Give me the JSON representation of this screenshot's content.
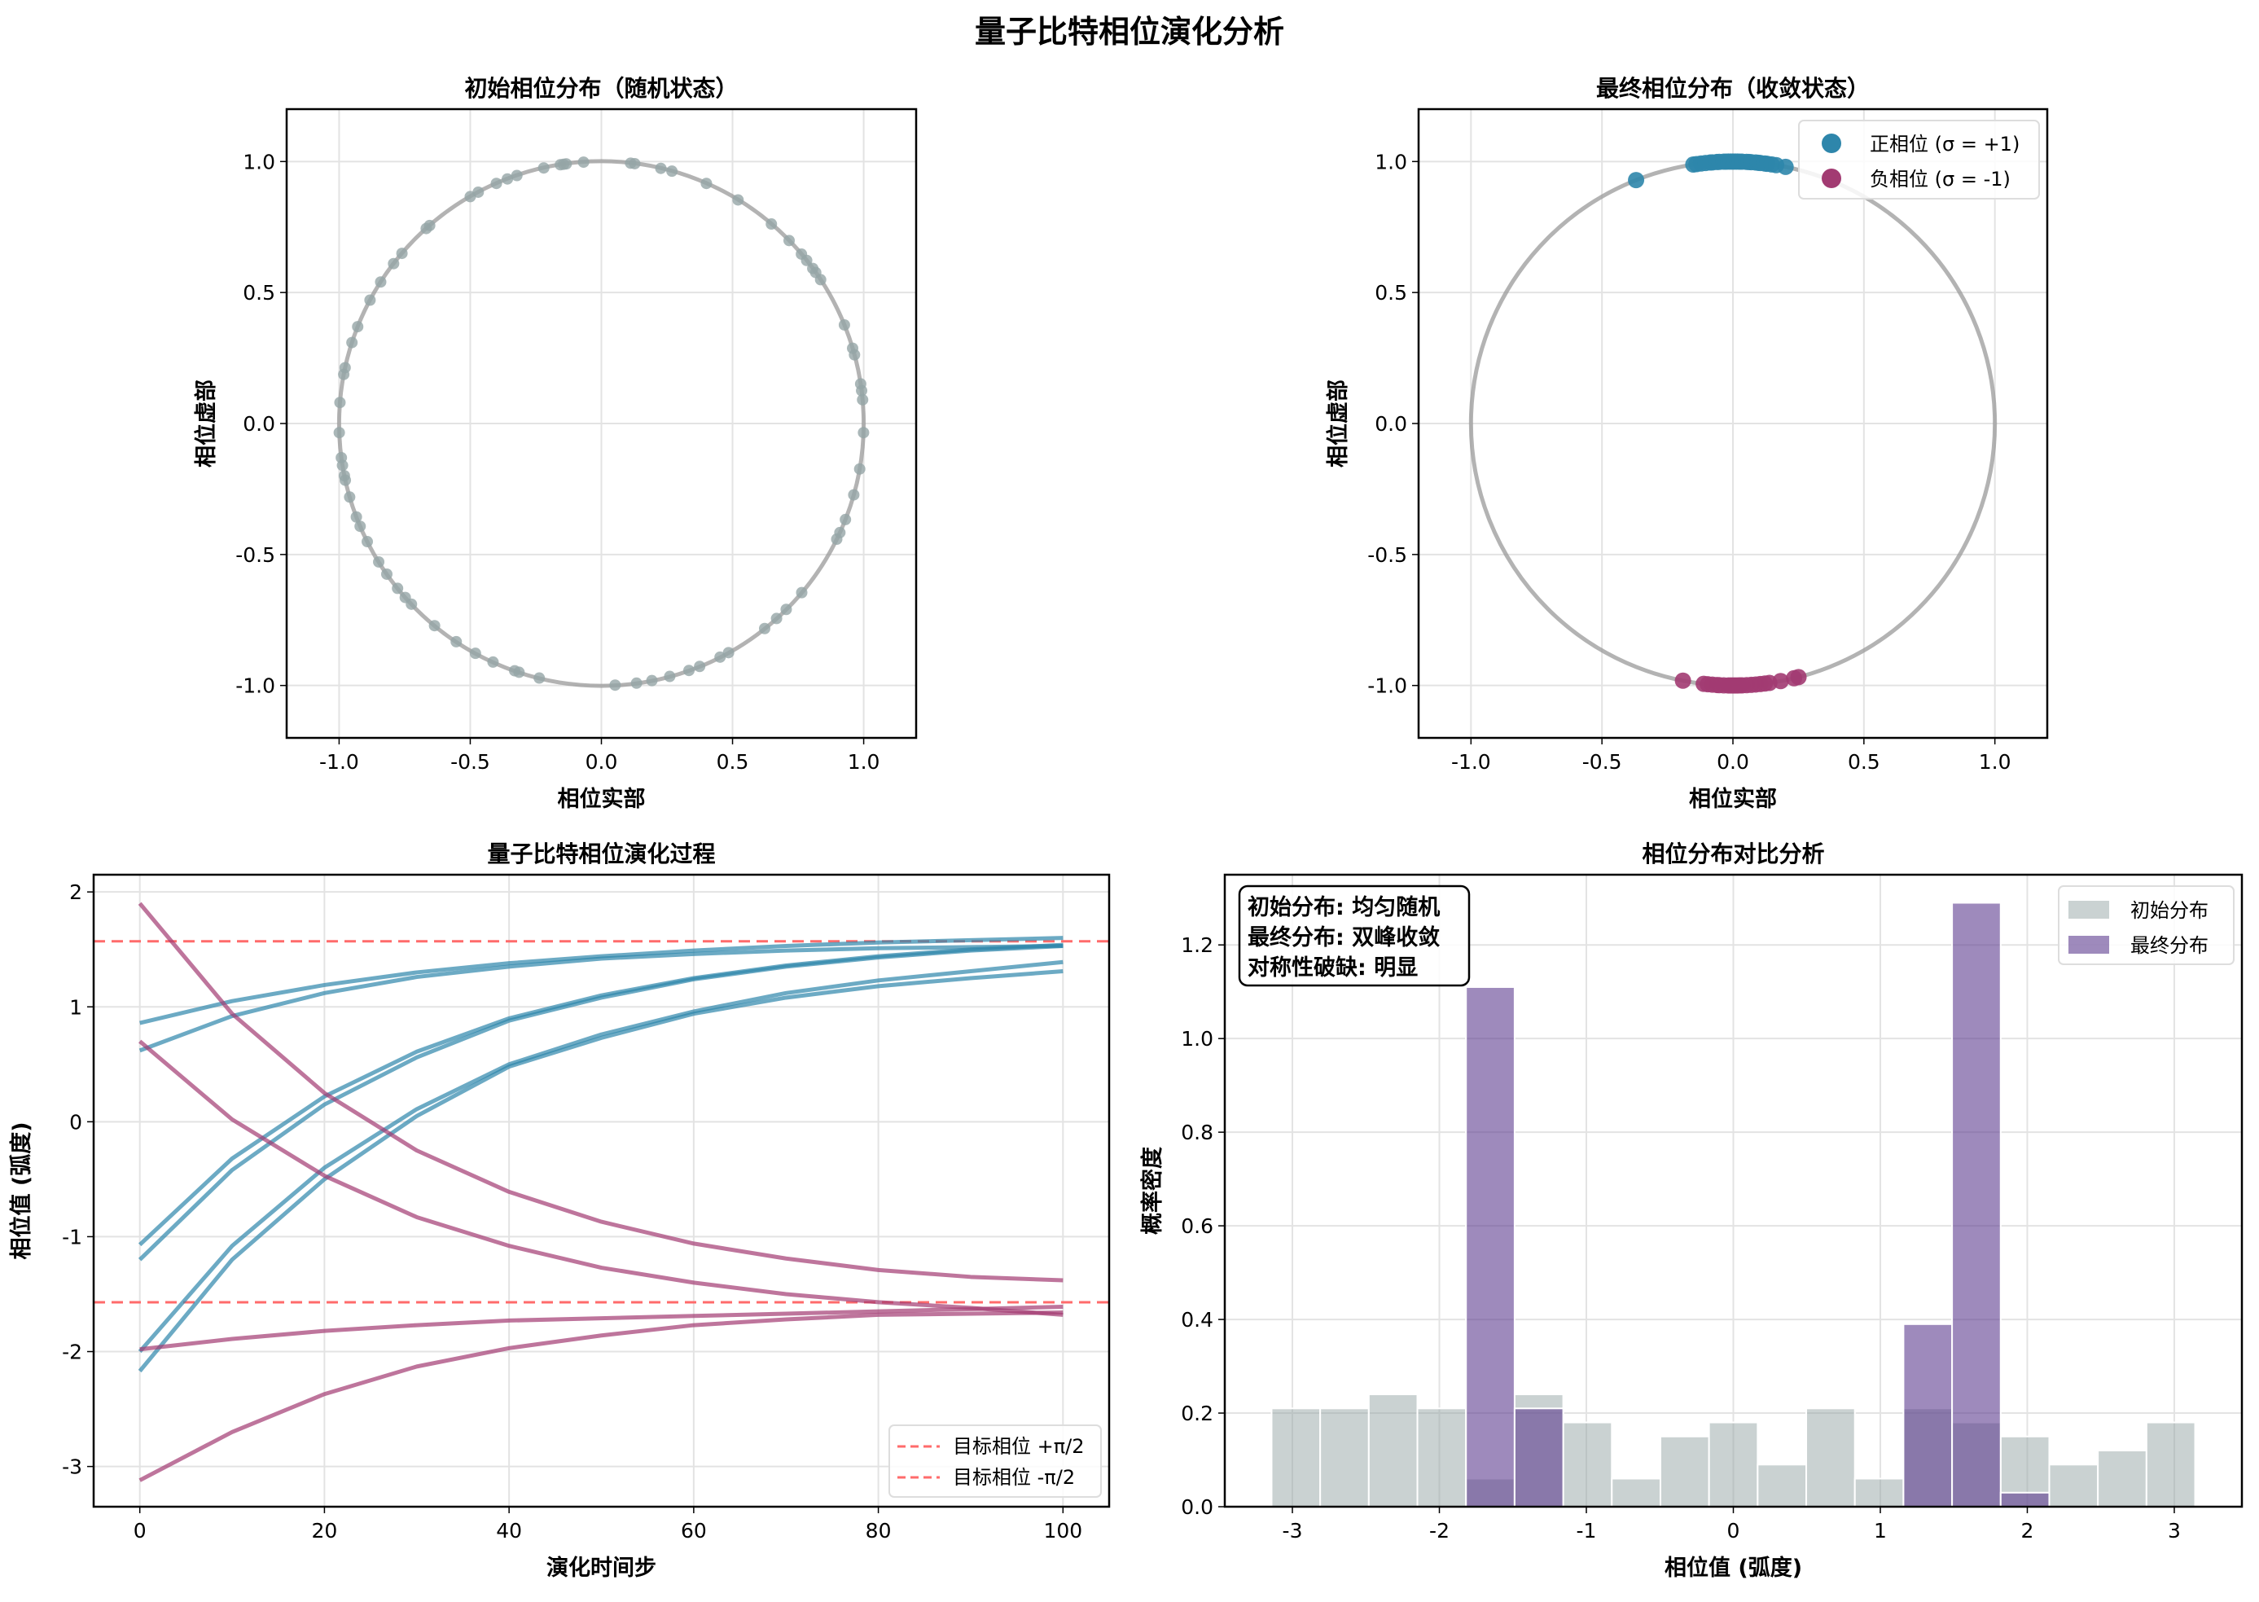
{
  "figure": {
    "title": "量子比特相位演化分析"
  },
  "chart_data": [
    {
      "type": "scatter",
      "title": "初始相位分布（随机状态）",
      "xlabel": "相位实部",
      "ylabel": "相位虚部",
      "xlim": [
        -1.2,
        1.2
      ],
      "ylim": [
        -1.2,
        1.2
      ],
      "xtick_labels": [
        "-1.0",
        "-0.5",
        "0.0",
        "0.5",
        "1.0"
      ],
      "ytick_labels": [
        "-1.0",
        "-0.5",
        "0.0",
        "0.5",
        "1.0"
      ],
      "grid": true,
      "unit_circle": true,
      "point_color": "#95A5A6",
      "angles_deg": [
        102.7,
        99,
        98.3,
        97.7,
        93.9,
        83.6,
        82.7,
        76.9,
        74.4,
        66.4,
        58.6,
        108.8,
        111,
        113.6,
        118,
        120,
        130.9,
        131.9,
        139.5,
        142.4,
        147.3,
        151.9,
        158.3,
        162,
        167.7,
        169.2,
        175.4,
        182,
        187.5,
        189.2,
        191.5,
        192.5,
        196.3,
        200.9,
        203.1,
        206.8,
        211.9,
        215.1,
        219,
        221.6,
        223.6,
        230.5,
        236.4,
        241.3,
        245.6,
        250.7,
        251.7,
        256.3,
        273,
        277.7,
        281.1,
        285.1,
        289.5,
        292,
        296.9,
        299,
        308.5,
        311.9,
        314.8,
        319.8,
        333.8,
        335.4,
        338.5,
        344.2,
        350,
        358,
        5.2,
        7.2,
        8.7,
        15.2,
        16.7,
        22.1,
        33.3,
        35.2,
        36.3,
        38.5,
        40.3,
        44.3,
        49.6
      ]
    },
    {
      "type": "scatter",
      "title": "最终相位分布（收敛状态）",
      "xlabel": "相位实部",
      "ylabel": "相位虚部",
      "xlim": [
        -1.2,
        1.2
      ],
      "ylim": [
        -1.2,
        1.2
      ],
      "xtick_labels": [
        "-1.0",
        "-0.5",
        "0.0",
        "0.5",
        "1.0"
      ],
      "ytick_labels": [
        "-1.0",
        "-0.5",
        "0.0",
        "0.5",
        "1.0"
      ],
      "grid": true,
      "unit_circle": true,
      "legend": "top-right",
      "series": [
        {
          "name": "正相位 (σ = +1)",
          "color": "#2E86AB",
          "angles_deg": [
            111.7,
            98.7,
            98,
            97,
            96,
            95,
            94.5,
            93.5,
            93,
            92,
            91.5,
            91,
            90.5,
            90,
            89.5,
            89,
            88.5,
            88,
            87,
            86.5,
            86,
            85,
            84.5,
            84,
            83,
            82.5,
            81.5,
            80.5,
            78.4
          ]
        },
        {
          "name": "负相位 (σ = -1)",
          "color": "#A23B72",
          "angles_deg": [
            259,
            263.6,
            264.5,
            265.5,
            266.5,
            267,
            268,
            269,
            269.5,
            270,
            270.5,
            271,
            271.5,
            272,
            273,
            274,
            275,
            276,
            277,
            278,
            280.5,
            283.5,
            284.5
          ]
        }
      ]
    },
    {
      "type": "line",
      "title": "量子比特相位演化过程",
      "xlabel": "演化时间步",
      "ylabel": "相位值 (弧度)",
      "xlim": [
        -5,
        105
      ],
      "ylim": [
        -3.35,
        2.15
      ],
      "xtick_labels": [
        "0",
        "20",
        "40",
        "60",
        "80",
        "100"
      ],
      "ytick_labels": [
        "-3",
        "-2",
        "-1",
        "0",
        "1",
        "2"
      ],
      "grid": true,
      "legend": "bottom-right",
      "x": [
        0,
        10,
        20,
        30,
        40,
        50,
        60,
        70,
        80,
        90,
        100
      ],
      "series": [
        {
          "color": "#2E86AB",
          "y": [
            0.86,
            1.05,
            1.19,
            1.3,
            1.38,
            1.44,
            1.49,
            1.53,
            1.56,
            1.58,
            1.6
          ]
        },
        {
          "color": "#2E86AB",
          "y": [
            0.62,
            0.92,
            1.12,
            1.26,
            1.35,
            1.42,
            1.46,
            1.49,
            1.51,
            1.52,
            1.53
          ]
        },
        {
          "color": "#2E86AB",
          "y": [
            -1.07,
            -0.32,
            0.22,
            0.61,
            0.9,
            1.1,
            1.25,
            1.36,
            1.44,
            1.5,
            1.54
          ]
        },
        {
          "color": "#2E86AB",
          "y": [
            -1.2,
            -0.42,
            0.15,
            0.56,
            0.88,
            1.08,
            1.24,
            1.35,
            1.43,
            1.49,
            1.53
          ]
        },
        {
          "color": "#2E86AB",
          "y": [
            -2.0,
            -1.08,
            -0.4,
            0.11,
            0.5,
            0.76,
            0.96,
            1.12,
            1.23,
            1.31,
            1.39
          ]
        },
        {
          "color": "#2E86AB",
          "y": [
            -2.17,
            -1.2,
            -0.5,
            0.05,
            0.48,
            0.73,
            0.94,
            1.08,
            1.18,
            1.25,
            1.31
          ]
        },
        {
          "color": "#A23B72",
          "y": [
            1.9,
            0.94,
            0.25,
            -0.25,
            -0.61,
            -0.87,
            -1.06,
            -1.19,
            -1.29,
            -1.35,
            -1.38
          ]
        },
        {
          "color": "#A23B72",
          "y": [
            0.7,
            0.02,
            -0.47,
            -0.83,
            -1.08,
            -1.27,
            -1.4,
            -1.5,
            -1.57,
            -1.62,
            -1.68
          ]
        },
        {
          "color": "#A23B72",
          "y": [
            -1.98,
            -1.89,
            -1.82,
            -1.77,
            -1.73,
            -1.71,
            -1.69,
            -1.67,
            -1.65,
            -1.63,
            -1.61
          ]
        },
        {
          "color": "#A23B72",
          "y": [
            -3.12,
            -2.7,
            -2.37,
            -2.13,
            -1.97,
            -1.86,
            -1.77,
            -1.72,
            -1.68,
            -1.67,
            -1.66
          ]
        }
      ],
      "reference_lines": [
        {
          "name": "目标相位 +π/2",
          "y": 1.5708,
          "color": "#FF6B6B"
        },
        {
          "name": "目标相位 -π/2",
          "y": -1.5708,
          "color": "#FF6B6B"
        }
      ]
    },
    {
      "type": "bar",
      "title": "相位分布对比分析",
      "xlabel": "相位值 (弧度)",
      "ylabel": "概率密度",
      "xlim": [
        -3.46,
        3.46
      ],
      "ylim": [
        0,
        1.35
      ],
      "xtick_labels": [
        "-3",
        "-2",
        "-1",
        "0",
        "1",
        "2",
        "3"
      ],
      "ytick_labels": [
        "0.0",
        "0.2",
        "0.4",
        "0.6",
        "0.8",
        "1.0",
        "1.2"
      ],
      "grid": true,
      "legend": "top-right",
      "bin_range": [
        -3.1416,
        3.1416
      ],
      "series": [
        {
          "name": "初始分布",
          "color": "#95A5A6",
          "values": [
            0.21,
            0.21,
            0.24,
            0.21,
            0.06,
            0.24,
            0.18,
            0.06,
            0.15,
            0.18,
            0.09,
            0.21,
            0.06,
            0.21,
            0.18,
            0.15,
            0.09,
            0.12,
            0.18
          ]
        },
        {
          "name": "最终分布",
          "color": "#5E3C8F",
          "values": [
            0,
            0,
            0,
            0,
            1.11,
            0.21,
            0,
            0,
            0,
            0,
            0,
            0,
            0,
            0.39,
            1.29,
            0.03,
            0,
            0,
            0
          ]
        }
      ],
      "annotation": [
        "初始分布: 均匀随机",
        "最终分布: 双峰收敛",
        "对称性破缺: 明显"
      ]
    }
  ]
}
